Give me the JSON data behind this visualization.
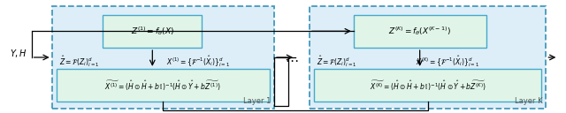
{
  "dashed_color": "#4499bb",
  "solid_cyan_color": "#44aacc",
  "inner_fill": "#e0f5e8",
  "outer_fill": "#ddeef8",
  "label_YH": "$Y, H$",
  "label_layer1": "Layer 1",
  "label_layerK": "Layer K",
  "dots": "$\\cdots$",
  "eq_top1": "$Z^{(1)} = f_{\\theta}(X)$",
  "eq_top2": "$Z^{(K)} = f_{\\theta}(X^{(K-1)})$",
  "eq_mid1": "$\\hat{Z} = \\mathcal{F}(Z_i)_{i=1}^{d}$",
  "eq_mid2": "$\\hat{Z} = \\mathcal{F}(Z_i)_{i=1}^{d}$",
  "eq_x1": "$X^{(1)} = \\{\\mathcal{F}^{-1}(\\hat{X}_i)\\}_{i=1}^{d}$",
  "eq_x2": "$X^{(K)} = \\{\\mathcal{F}^{-1}(\\hat{X}_i)\\}_{i=1}^{d}$",
  "eq_bot1": "$\\widetilde{X^{(1)}} = (\\hat{H} \\odot \\hat{H} + b\\mathbb{1})^{-1}(\\hat{H} \\odot \\hat{Y} + b\\widetilde{Z^{(1)}})$",
  "eq_bot2": "$\\widetilde{X^{(K)}} = (\\hat{H} \\odot \\hat{H} + b\\mathbb{1})^{-1}(\\hat{H} \\odot \\hat{Y} + b\\widetilde{Z^{(K)}})$"
}
